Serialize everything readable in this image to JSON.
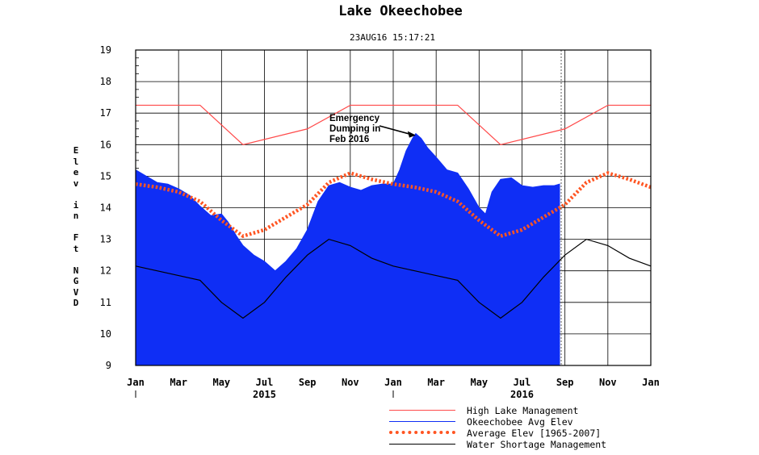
{
  "colors": {
    "high_lake": "#ff4a4a",
    "avg_elev": "#0f2ef5",
    "hist_avg": "#ff5522",
    "water_shortage": "#000000",
    "grid": "#000000"
  },
  "chart_data": {
    "type": "area",
    "title": "Lake Okeechobee",
    "subtitle": "23AUG16  15:17:21",
    "ylabel": "Elev in Ft NGVD",
    "ylim": [
      9,
      19
    ],
    "yticks": [
      9,
      10,
      11,
      12,
      13,
      14,
      15,
      16,
      17,
      18,
      19
    ],
    "xlim": [
      0,
      24
    ],
    "xticks": [
      {
        "x": 0,
        "label": "Jan"
      },
      {
        "x": 2,
        "label": "Mar"
      },
      {
        "x": 4,
        "label": "May"
      },
      {
        "x": 6,
        "label": "Jul"
      },
      {
        "x": 8,
        "label": "Sep"
      },
      {
        "x": 10,
        "label": "Nov"
      },
      {
        "x": 12,
        "label": "Jan"
      },
      {
        "x": 14,
        "label": "Mar"
      },
      {
        "x": 16,
        "label": "May"
      },
      {
        "x": 18,
        "label": "Jul"
      },
      {
        "x": 20,
        "label": "Sep"
      },
      {
        "x": 22,
        "label": "Nov"
      },
      {
        "x": 24,
        "label": "Jan"
      }
    ],
    "year_labels": [
      {
        "x": 6,
        "label": "2015"
      },
      {
        "x": 18,
        "label": "2016"
      }
    ],
    "x_unit": "months since Jan 2015",
    "current_date_x": 19.75,
    "grid": true,
    "legend_position": "bottom-right",
    "annotation": {
      "text": [
        "Emergency",
        "Dumping in",
        "Feb 2016"
      ],
      "points_to": {
        "x": 13.05,
        "y": 16.35
      }
    },
    "series": [
      {
        "name": "High Lake Management",
        "key": "high_lake",
        "style": "line",
        "x": [
          0,
          3,
          5,
          8,
          10,
          15,
          17,
          20,
          22,
          24
        ],
        "y": [
          17.25,
          17.25,
          16,
          16.5,
          17.25,
          17.25,
          16,
          16.5,
          17.25,
          17.25
        ]
      },
      {
        "name": "Okeechobee Avg Elev",
        "key": "avg_elev",
        "style": "area",
        "x": [
          0,
          0.5,
          1,
          1.5,
          2,
          2.5,
          3,
          3.5,
          4,
          4.3,
          4.7,
          5,
          5.5,
          6,
          6.5,
          7,
          7.5,
          8,
          8.5,
          9,
          9.5,
          10,
          10.5,
          11,
          11.5,
          12,
          12.3,
          12.6,
          12.9,
          13.05,
          13.3,
          13.6,
          14,
          14.5,
          15,
          15.5,
          16,
          16.3,
          16.6,
          17,
          17.5,
          18,
          18.5,
          19,
          19.5,
          19.75
        ],
        "y": [
          15.2,
          15.0,
          14.8,
          14.75,
          14.6,
          14.4,
          14.05,
          13.75,
          13.8,
          13.55,
          13.1,
          12.8,
          12.5,
          12.3,
          12.0,
          12.3,
          12.7,
          13.3,
          14.2,
          14.7,
          14.8,
          14.65,
          14.55,
          14.7,
          14.75,
          14.75,
          15.2,
          15.8,
          16.2,
          16.35,
          16.2,
          15.9,
          15.6,
          15.2,
          15.1,
          14.6,
          14.0,
          13.8,
          14.5,
          14.9,
          14.95,
          14.7,
          14.65,
          14.7,
          14.7,
          14.75
        ]
      },
      {
        "name": "Average Elev [1965-2007]",
        "key": "hist_avg",
        "style": "dotted",
        "x": [
          0,
          1,
          2,
          3,
          4,
          5,
          6,
          7,
          8,
          9,
          10,
          11,
          12,
          13,
          14,
          15,
          16,
          17,
          18,
          19,
          20,
          21,
          22,
          23,
          24
        ],
        "y": [
          14.75,
          14.65,
          14.5,
          14.2,
          13.6,
          13.1,
          13.3,
          13.7,
          14.1,
          14.8,
          15.1,
          14.9,
          14.75,
          14.65,
          14.5,
          14.2,
          13.6,
          13.1,
          13.3,
          13.7,
          14.1,
          14.8,
          15.1,
          14.9,
          14.65
        ]
      },
      {
        "name": "Water Shortage Management",
        "key": "water_shortage",
        "style": "line",
        "x": [
          0,
          1,
          2,
          3,
          4,
          5,
          6,
          7,
          8,
          9,
          10,
          11,
          12,
          13,
          14,
          15,
          16,
          17,
          18,
          19,
          20,
          21,
          22,
          23,
          24
        ],
        "y": [
          12.15,
          12.0,
          11.85,
          11.7,
          11.0,
          10.5,
          11.0,
          11.8,
          12.5,
          13.0,
          12.8,
          12.4,
          12.15,
          12.0,
          11.85,
          11.7,
          11.0,
          10.5,
          11.0,
          11.8,
          12.5,
          13.0,
          12.8,
          12.4,
          12.15
        ]
      }
    ]
  }
}
